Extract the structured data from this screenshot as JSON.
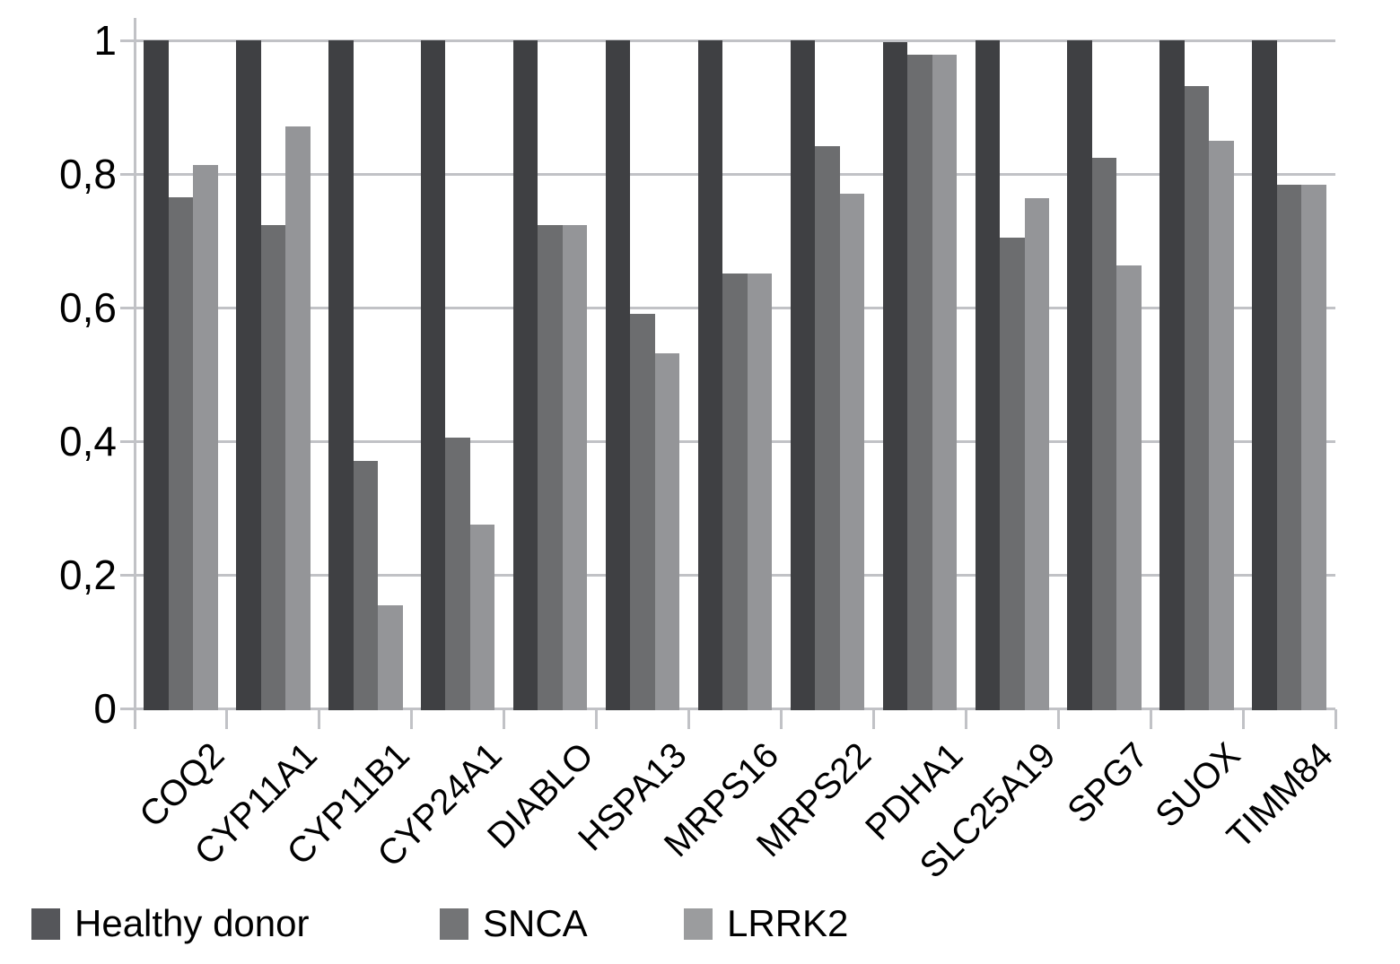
{
  "figure": {
    "background": "#ffffff"
  },
  "chart_data": {
    "type": "bar",
    "title": "",
    "categories": [
      "COQ2",
      "CYP11A1",
      "CYP11B1",
      "CYP24A1",
      "DIABLO",
      "HSPA13",
      "MRPS16",
      "MRPS22",
      "PDHA1",
      "SLC25A19",
      "SPG7",
      "SUOX",
      "TIMM84"
    ],
    "series": [
      {
        "name": "Healthy donor",
        "color": "#3f4043",
        "legend_color": "#55565a",
        "values": [
          1,
          1,
          1,
          1,
          1,
          1,
          1,
          1,
          0.997,
          1,
          1,
          1,
          1
        ]
      },
      {
        "name": "SNCA",
        "color": "#6c6d6f",
        "legend_color": "#737476",
        "values": [
          0.765,
          0.724,
          0.37,
          0.406,
          0.724,
          0.591,
          0.651,
          0.842,
          0.978,
          0.705,
          0.824,
          0.931,
          0.784
        ]
      },
      {
        "name": "LRRK2",
        "color": "#949598",
        "legend_color": "#9b9c9e",
        "values": [
          0.813,
          0.871,
          0.154,
          0.275,
          0.724,
          0.531,
          0.651,
          0.771,
          0.978,
          0.764,
          0.663,
          0.849,
          0.784
        ]
      }
    ],
    "y_axis": {
      "min": 0,
      "max": 1,
      "tick_interval": 0.2,
      "tick_labels": [
        "0",
        "0,2",
        "0,4",
        "0,6",
        "0,8",
        "1"
      ],
      "decimal_separator": ","
    },
    "x_axis": {
      "label_rotation_deg": 45
    },
    "grid": true,
    "legend_position": "bottom",
    "colors": {
      "gridline": "#c1c2c6",
      "axis": "#c1c2c6",
      "text": "#000000"
    }
  }
}
